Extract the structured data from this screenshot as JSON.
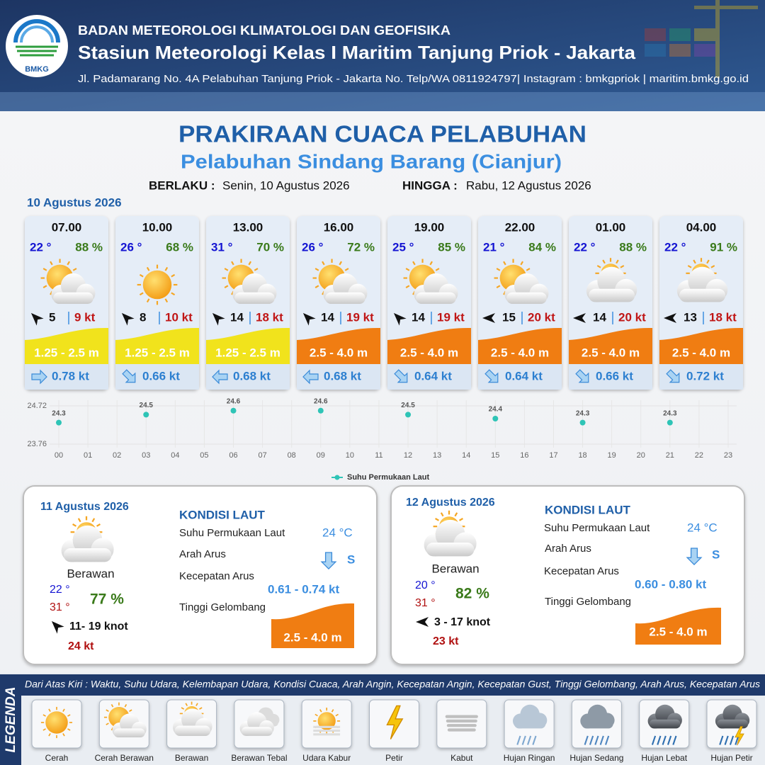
{
  "header": {
    "agency": "BADAN METEOROLOGI KLIMATOLOGI DAN GEOFISIKA",
    "station": "Stasiun Meteorologi Kelas I Maritim Tanjung Priok - Jakarta",
    "address": "Jl. Padamarang No. 4A Pelabuhan Tanjung Priok - Jakarta No. Telp/WA 0811924797| Instagram : bmkgpriok | maritim.bmkg.go.id",
    "logo_text": "BMKG"
  },
  "title": "PRAKIRAAN CUACA PELABUHAN",
  "subtitle": "Pelabuhan Sindang Barang (Cianjur)",
  "validity": {
    "from_label": "BERLAKU :",
    "from": "Senin, 10 Agustus 2026",
    "to_label": "HINGGA :",
    "to": "Rabu, 12 Agustus 2026"
  },
  "day1": {
    "date": "10 Agustus 2026",
    "slots": [
      {
        "time": "07.00",
        "temp": "22 °",
        "humidity": "88 %",
        "wind": "5",
        "gust": "9 kt",
        "wave": "1.25 - 2.5 m",
        "current": "0.78 kt"
      },
      {
        "time": "10.00",
        "temp": "26 °",
        "humidity": "68 %",
        "wind": "8",
        "gust": "10 kt",
        "wave": "1.25 - 2.5 m",
        "current": "0.66 kt"
      },
      {
        "time": "13.00",
        "temp": "31 °",
        "humidity": "70 %",
        "wind": "14",
        "gust": "18 kt",
        "wave": "1.25 - 2.5 m",
        "current": "0.68 kt"
      },
      {
        "time": "16.00",
        "temp": "26 °",
        "humidity": "72 %",
        "wind": "14",
        "gust": "19 kt",
        "wave": "2.5 - 4.0 m",
        "current": "0.68 kt"
      },
      {
        "time": "19.00",
        "temp": "25 °",
        "humidity": "85 %",
        "wind": "14",
        "gust": "19 kt",
        "wave": "2.5 - 4.0 m",
        "current": "0.64 kt"
      },
      {
        "time": "22.00",
        "temp": "21 °",
        "humidity": "84 %",
        "wind": "15",
        "gust": "20 kt",
        "wave": "2.5 - 4.0 m",
        "current": "0.64 kt"
      },
      {
        "time": "01.00",
        "temp": "22 °",
        "humidity": "88 %",
        "wind": "14",
        "gust": "20 kt",
        "wave": "2.5 - 4.0 m",
        "current": "0.66 kt"
      },
      {
        "time": "04.00",
        "temp": "22 °",
        "humidity": "91 %",
        "wind": "13",
        "gust": "18 kt",
        "wave": "2.5 - 4.0 m",
        "current": "0.72 kt"
      }
    ]
  },
  "chart_data": {
    "type": "scatter",
    "x": [
      0,
      3,
      6,
      9,
      12,
      15,
      18,
      21
    ],
    "series": [
      {
        "name": "Suhu Permukaan Laut",
        "color": "#2ec4b6",
        "values": [
          24.3,
          24.5,
          24.6,
          24.6,
          24.5,
          24.4,
          24.3,
          24.3
        ]
      }
    ],
    "xlim": [
      0,
      23
    ],
    "xticks": [
      {
        "value": 0,
        "label": "00"
      },
      {
        "value": 1,
        "label": "01"
      },
      {
        "value": 2,
        "label": "02"
      },
      {
        "value": 3,
        "label": "03"
      },
      {
        "value": 4,
        "label": "04"
      },
      {
        "value": 5,
        "label": "05"
      },
      {
        "value": 6,
        "label": "06"
      },
      {
        "value": 7,
        "label": "07"
      },
      {
        "value": 8,
        "label": "08"
      },
      {
        "value": 9,
        "label": "09"
      },
      10,
      11,
      12,
      13,
      14,
      15,
      16,
      17,
      18,
      19,
      20,
      21,
      22,
      23
    ],
    "ylim": [
      23.76,
      24.72
    ],
    "yticks": [
      23.76,
      24.72
    ],
    "grid": true
  },
  "days": [
    {
      "date": "11 Agustus 2026",
      "condition": "Berawan",
      "temp_min": "22 °",
      "temp_max": "31 °",
      "humidity": "77 %",
      "wind": "11- 19 knot",
      "gust": "24 kt",
      "sea": {
        "title": "KONDISI LAUT",
        "sst_label": "Suhu Permukaan Laut",
        "sst": "24 °C",
        "dir_label": "Arah Arus",
        "dir": "S",
        "speed_label": "Kecepatan Arus",
        "speed": "0.61  - 0.74 kt",
        "wave_label": "Tinggi Gelombang",
        "wave": "2.5 - 4.0 m"
      }
    },
    {
      "date": "12 Agustus 2026",
      "condition": "Berawan",
      "temp_min": "20 °",
      "temp_max": "31 °",
      "humidity": "82 %",
      "wind": "3 - 17 knot",
      "gust": "23 kt",
      "sea": {
        "title": "KONDISI LAUT",
        "sst_label": "Suhu Permukaan Laut",
        "sst": "24 °C",
        "dir_label": "Arah Arus",
        "dir": "S",
        "speed_label": "Kecepatan Arus",
        "speed": "0.60 - 0.80 kt",
        "wave_label": "Tinggi Gelombang",
        "wave": "2.5 - 4.0 m"
      }
    }
  ],
  "legend": {
    "title": "LEGENDA",
    "note": "Dari Atas Kiri : Waktu, Suhu Udara, Kelembapan Udara, Kondisi Cuaca, Arah Angin, Kecepatan Angin, Kecepatan Gust, Tinggi Gelombang, Arah Arus, Kecepatan Arus",
    "items": [
      "Cerah",
      "Cerah Berawan",
      "Berawan",
      "Berawan Tebal",
      "Udara Kabur",
      "Petir",
      "Kabut",
      "Hujan Ringan",
      "Hujan Sedang",
      "Hujan Lebat",
      "Hujan Petir"
    ]
  }
}
